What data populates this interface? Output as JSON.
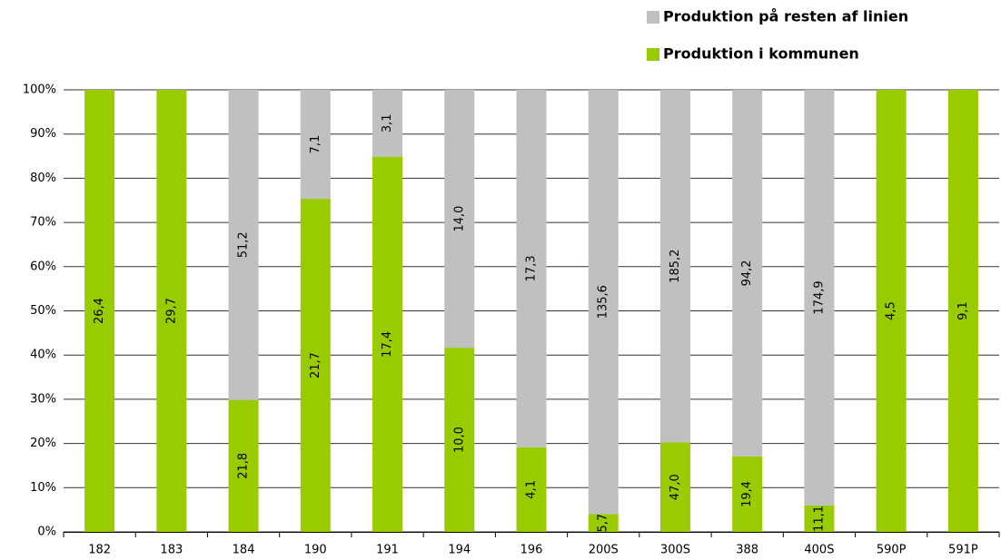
{
  "chart_data": {
    "type": "bar",
    "stacking": "percent",
    "categories": [
      "182",
      "183",
      "184",
      "190",
      "191",
      "194",
      "196",
      "200S",
      "300S",
      "388",
      "400S",
      "590P",
      "591P"
    ],
    "series": [
      {
        "name": "Produktion i kommunen",
        "color": "#99cc00",
        "values": [
          26.4,
          29.7,
          21.8,
          21.7,
          17.4,
          10.0,
          4.1,
          5.7,
          47.0,
          19.4,
          11.1,
          4.5,
          9.1
        ],
        "value_labels": [
          "26,4",
          "29,7",
          "21,8",
          "21,7",
          "17,4",
          "10,0",
          "4,1",
          "5,7",
          "47,0",
          "19,4",
          "11,1",
          "4,5",
          "9,1"
        ]
      },
      {
        "name": "Produktion på resten af linien",
        "color": "#c0c0c0",
        "values": [
          null,
          null,
          51.2,
          7.1,
          3.1,
          14.0,
          17.3,
          135.6,
          185.2,
          94.2,
          174.9,
          null,
          null
        ],
        "value_labels": [
          null,
          null,
          "51,2",
          "7,1",
          "3,1",
          "14,0",
          "17,3",
          "135,6",
          "185,2",
          "94,2",
          "174,9",
          null,
          null
        ]
      }
    ],
    "ylim": [
      0,
      100
    ],
    "yticks": [
      {
        "value": 0,
        "label": "0%"
      },
      {
        "value": 10,
        "label": "10%"
      },
      {
        "value": 20,
        "label": "20%"
      },
      {
        "value": 30,
        "label": "30%"
      },
      {
        "value": 40,
        "label": "40%"
      },
      {
        "value": 50,
        "label": "50%"
      },
      {
        "value": 60,
        "label": "60%"
      },
      {
        "value": 70,
        "label": "70%"
      },
      {
        "value": 80,
        "label": "80%"
      },
      {
        "value": 90,
        "label": "90%"
      },
      {
        "value": 100,
        "label": "100%"
      }
    ],
    "grid": true,
    "legend": "top-right"
  }
}
